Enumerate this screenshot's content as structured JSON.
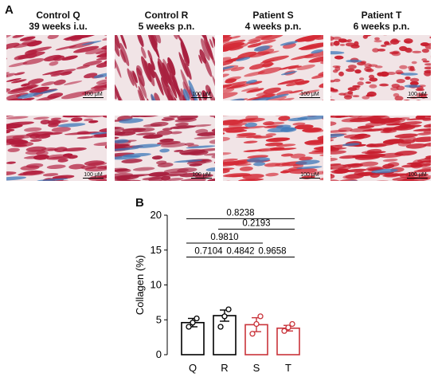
{
  "panel_a": {
    "letter": "A",
    "columns": [
      {
        "line1": "Control Q",
        "line2": "39 weeks i.u.",
        "tint": "#b21c3c"
      },
      {
        "line1": "Control R",
        "line2": "5 weeks p.n.",
        "tint": "#a8203f"
      },
      {
        "line1": "Patient S",
        "line2": "4 weeks p.n.",
        "tint": "#d42a36"
      },
      {
        "line1": "Patient T",
        "line2": "6 weeks p.n.",
        "tint": "#c81e2e"
      }
    ],
    "scale_label": "100 μM"
  },
  "panel_b": {
    "letter": "B"
  },
  "chart_data": {
    "type": "bar",
    "categories": [
      "Q",
      "R",
      "S",
      "T"
    ],
    "values": [
      4.6,
      5.6,
      4.3,
      3.8
    ],
    "sem": [
      0.6,
      0.8,
      1.0,
      0.4
    ],
    "points": [
      [
        4.0,
        4.6,
        5.2
      ],
      [
        4.0,
        5.5,
        6.5
      ],
      [
        3.0,
        4.4,
        5.5
      ],
      [
        3.4,
        3.9,
        4.4
      ]
    ],
    "bar_colors": [
      "#000000",
      "#000000",
      "#c9333a",
      "#c9333a"
    ],
    "ylabel": "Collagen (%)",
    "ylim": [
      0,
      20
    ],
    "yticks": [
      0,
      5,
      10,
      15,
      20
    ],
    "comparisons": [
      {
        "from": "Q",
        "to": "T",
        "p": "0.8238"
      },
      {
        "from": "R",
        "to": "T",
        "p": "0.2193"
      },
      {
        "from": "Q",
        "to": "S",
        "p": "0.9810"
      },
      {
        "from": "Q",
        "to": "R",
        "p": "0.7104"
      },
      {
        "from": "R",
        "to": "S",
        "p": "0.4842"
      },
      {
        "from": "S",
        "to": "T",
        "p": "0.9658"
      }
    ]
  }
}
